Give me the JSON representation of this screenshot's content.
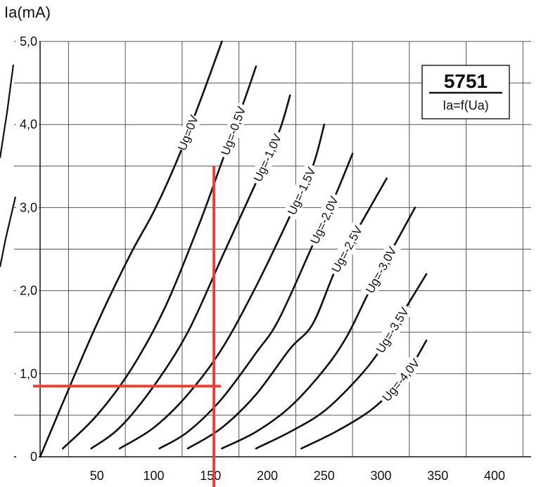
{
  "chart_data": {
    "type": "line",
    "title": "5751",
    "subtitle": "Ia=f(Ua)",
    "xlabel": "",
    "ylabel": "Ia(mA)",
    "xlim": [
      -35,
      435
    ],
    "ylim": [
      0,
      5
    ],
    "grid": true,
    "legend_placement": "top-right",
    "x_ticks": [
      "50",
      "100",
      "150",
      "200",
      "250",
      "300",
      "350",
      "400"
    ],
    "y_ticks": [
      "0",
      "1,0",
      "2,0",
      "3,0",
      "4,0",
      "5,0"
    ],
    "series": [
      {
        "name": "Ug=0V",
        "x": [
          0,
          20,
          50,
          80,
          100,
          120,
          140,
          160
        ],
        "y": [
          0,
          0.65,
          1.6,
          2.45,
          2.95,
          3.55,
          4.25,
          5.0
        ]
      },
      {
        "name": "Ug=-0,5V",
        "x": [
          20,
          50,
          80,
          110,
          140,
          160,
          180,
          190
        ],
        "y": [
          0.1,
          0.5,
          1.05,
          1.8,
          2.8,
          3.55,
          4.3,
          4.7
        ]
      },
      {
        "name": "Ug=-1,0V",
        "x": [
          45,
          70,
          100,
          130,
          160,
          190,
          210,
          220
        ],
        "y": [
          0.1,
          0.35,
          0.85,
          1.5,
          2.4,
          3.3,
          3.9,
          4.35
        ]
      },
      {
        "name": "Ug=-1,5V",
        "x": [
          70,
          100,
          130,
          160,
          190,
          220,
          240,
          250
        ],
        "y": [
          0.1,
          0.35,
          0.75,
          1.3,
          2.05,
          2.9,
          3.5,
          4.0
        ]
      },
      {
        "name": "Ug=-2,0V",
        "x": [
          105,
          130,
          160,
          190,
          210,
          240,
          260,
          275
        ],
        "y": [
          0.1,
          0.3,
          0.7,
          1.25,
          1.65,
          2.55,
          3.15,
          3.65
        ]
      },
      {
        "name": "Ug=-2,5V",
        "x": [
          130,
          160,
          190,
          220,
          240,
          260,
          280,
          305
        ],
        "y": [
          0.1,
          0.35,
          0.75,
          1.3,
          1.6,
          2.25,
          2.75,
          3.35
        ]
      },
      {
        "name": "Ug=-3,0V",
        "x": [
          160,
          190,
          220,
          250,
          270,
          290,
          310,
          330
        ],
        "y": [
          0.1,
          0.3,
          0.6,
          1.05,
          1.45,
          2.0,
          2.5,
          3.0
        ]
      },
      {
        "name": "Ug=-3,5V",
        "x": [
          190,
          220,
          250,
          280,
          300,
          320,
          340
        ],
        "y": [
          0.1,
          0.3,
          0.55,
          0.95,
          1.3,
          1.75,
          2.2
        ]
      },
      {
        "name": "Ug=-4,0V",
        "x": [
          230,
          260,
          290,
          310,
          325,
          340
        ],
        "y": [
          0.1,
          0.3,
          0.55,
          0.8,
          1.05,
          1.4
        ]
      }
    ],
    "operating_point": {
      "x": 153,
      "y": 0.85
    },
    "annotation_color": "#e8403b"
  }
}
